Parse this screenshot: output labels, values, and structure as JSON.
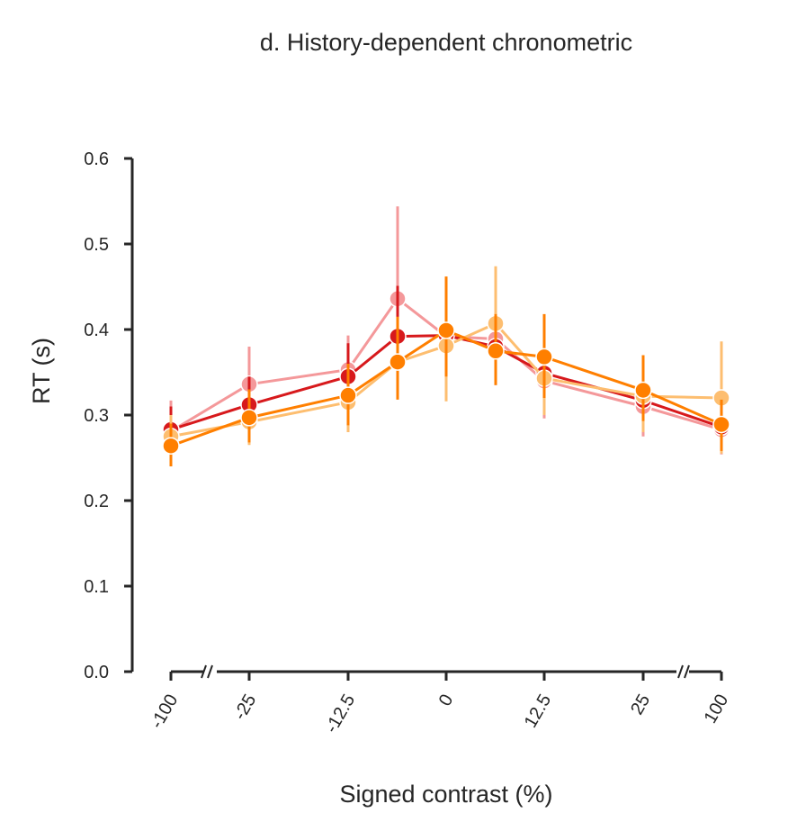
{
  "chart_data": {
    "type": "line",
    "title": "d. History-dependent chronometric",
    "xlabel": "Signed contrast (%)",
    "ylabel": "RT (s)",
    "ylim": [
      0,
      0.6
    ],
    "yticks": [
      "0.0",
      "0.1",
      "0.2",
      "0.3",
      "0.4",
      "0.5",
      "0.6"
    ],
    "ytick_values": [
      0,
      0.1,
      0.2,
      0.3,
      0.4,
      0.5,
      0.6
    ],
    "xtick_labels": [
      "-100",
      "-25",
      "-12.5",
      "0",
      "12.5",
      "25",
      "100"
    ],
    "x_categories": [
      -100,
      -25,
      -12.5,
      -6.25,
      0,
      6.25,
      12.5,
      25,
      100
    ],
    "axis_breaks": true,
    "grid": false,
    "legend": "none",
    "series": [
      {
        "color": "#f4989a",
        "values": [
          0.281,
          0.336,
          0.353,
          0.436,
          0.392,
          0.389,
          0.34,
          0.31,
          0.283
        ],
        "err_low": [
          0.255,
          0.291,
          0.313,
          0.326,
          0.355,
          0.335,
          0.296,
          0.275,
          0.254
        ],
        "err_high": [
          0.317,
          0.38,
          0.393,
          0.544,
          0.42,
          0.442,
          0.39,
          0.345,
          0.31
        ]
      },
      {
        "color": "#d7191c",
        "values": [
          0.283,
          0.312,
          0.345,
          0.392,
          0.393,
          0.38,
          0.349,
          0.317,
          0.286
        ],
        "err_low": [
          0.25,
          0.28,
          0.305,
          0.33,
          0.36,
          0.34,
          0.315,
          0.28,
          0.256
        ],
        "err_high": [
          0.31,
          0.345,
          0.384,
          0.451,
          0.43,
          0.42,
          0.39,
          0.355,
          0.316
        ]
      },
      {
        "color": "#fdbe70",
        "values": [
          0.275,
          0.292,
          0.315,
          0.362,
          0.381,
          0.407,
          0.343,
          0.322,
          0.32
        ],
        "err_low": [
          0.25,
          0.265,
          0.28,
          0.32,
          0.316,
          0.345,
          0.3,
          0.28,
          0.255
        ],
        "err_high": [
          0.3,
          0.32,
          0.346,
          0.41,
          0.435,
          0.474,
          0.385,
          0.36,
          0.386
        ]
      },
      {
        "color": "#ff7f00",
        "values": [
          0.264,
          0.297,
          0.323,
          0.362,
          0.399,
          0.375,
          0.368,
          0.329,
          0.289
        ],
        "err_low": [
          0.24,
          0.268,
          0.288,
          0.318,
          0.345,
          0.335,
          0.32,
          0.293,
          0.258
        ],
        "err_high": [
          0.29,
          0.33,
          0.36,
          0.415,
          0.462,
          0.418,
          0.418,
          0.37,
          0.318
        ]
      }
    ]
  }
}
